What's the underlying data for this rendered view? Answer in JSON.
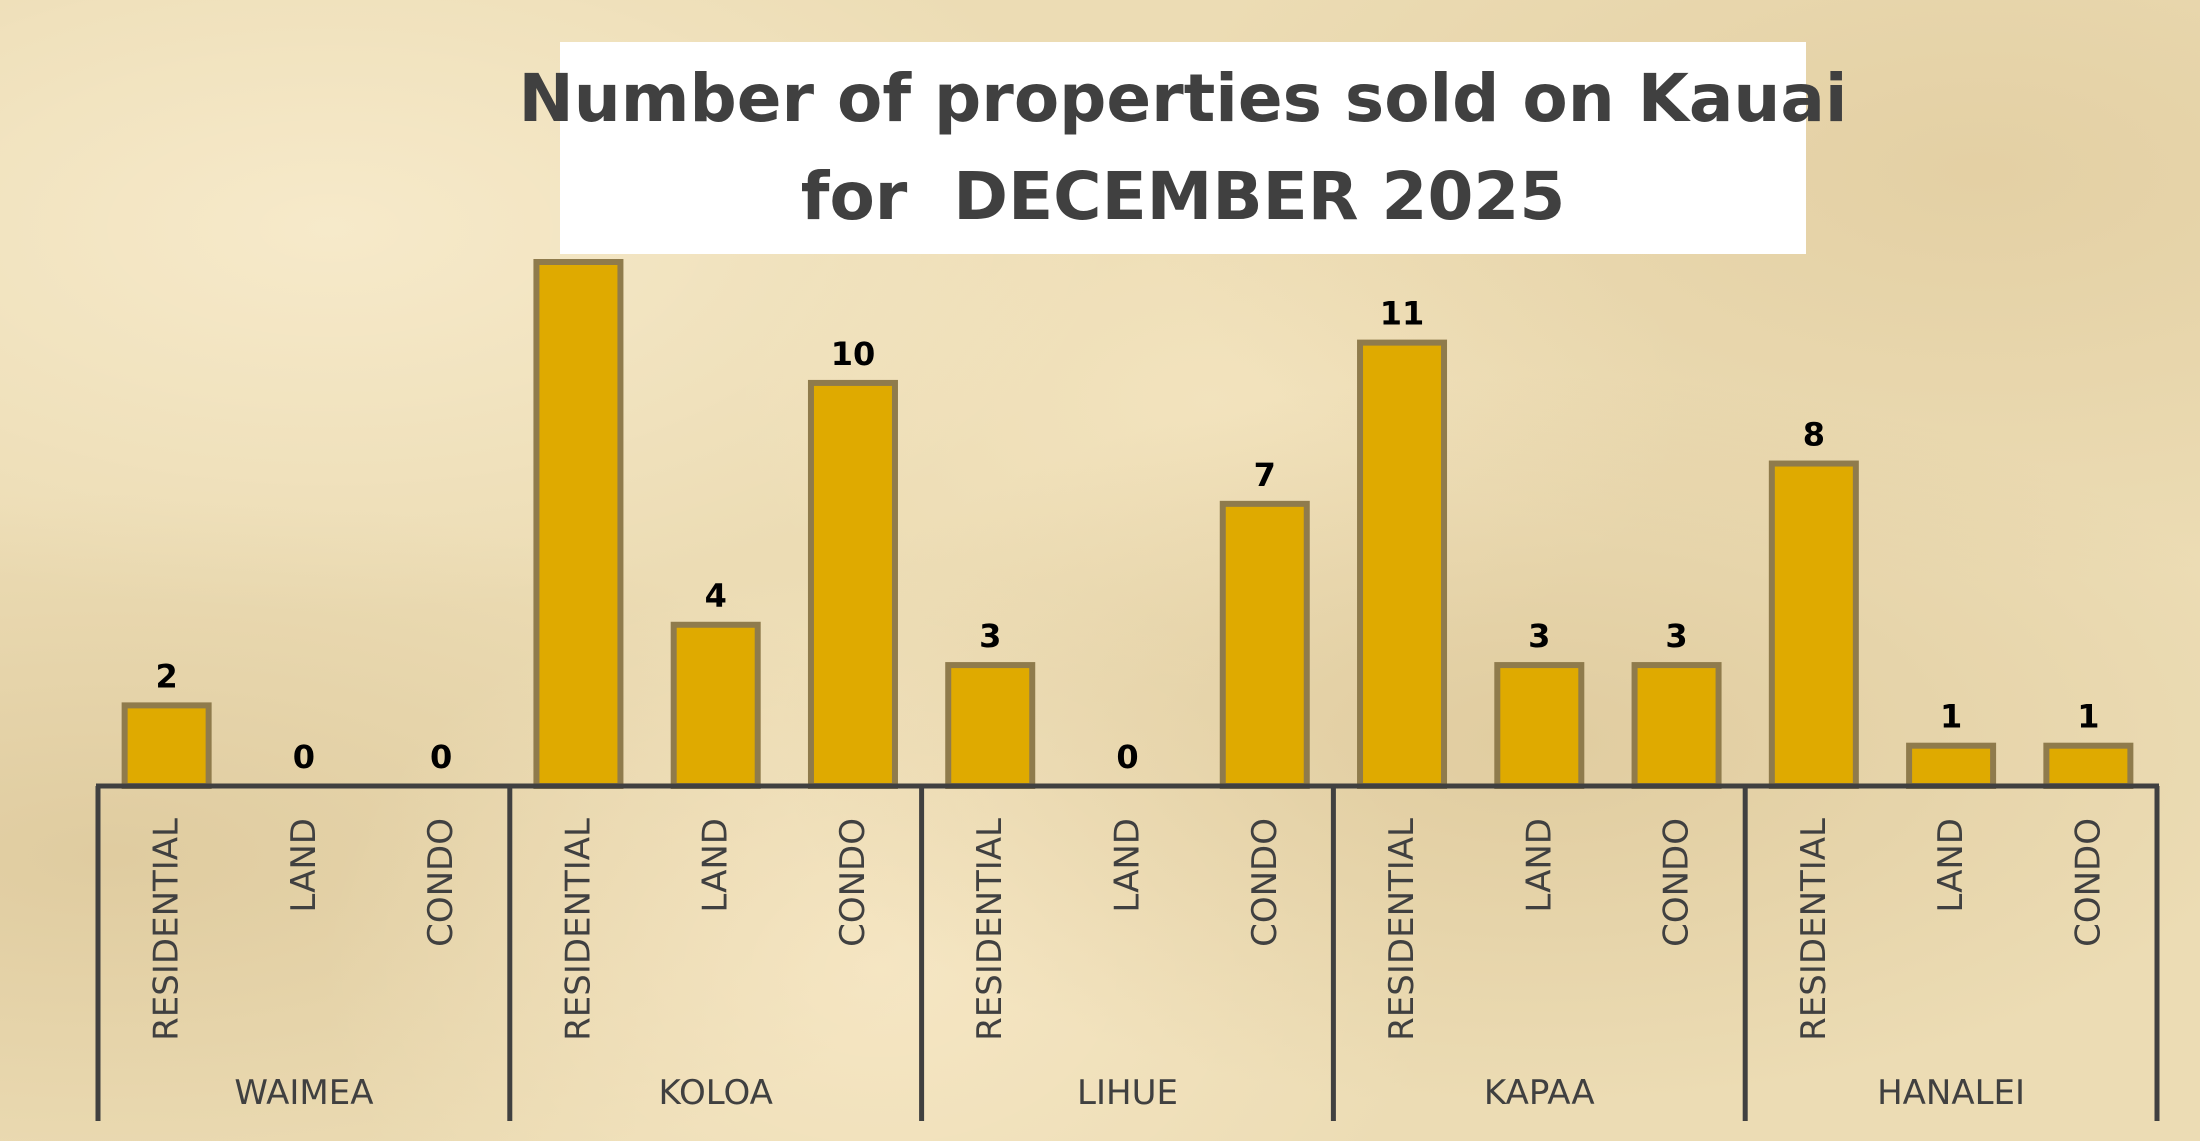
{
  "chart_data": {
    "type": "bar",
    "title_lines": [
      "Number of properties sold on Kauai",
      "for  DECEMBER 2025"
    ],
    "groups": [
      {
        "name": "WAIMEA",
        "categories": [
          "RESIDENTIAL",
          "LAND",
          "CONDO"
        ],
        "values": [
          2,
          0,
          0
        ],
        "labels": [
          "2",
          "0",
          "0"
        ]
      },
      {
        "name": "KOLOA",
        "categories": [
          "RESIDENTIAL",
          "LAND",
          "CONDO"
        ],
        "values": [
          13,
          4,
          10
        ],
        "labels": [
          "",
          "4",
          "10"
        ]
      },
      {
        "name": "LIHUE",
        "categories": [
          "RESIDENTIAL",
          "LAND",
          "CONDO"
        ],
        "values": [
          3,
          0,
          7
        ],
        "labels": [
          "3",
          "0",
          "7"
        ]
      },
      {
        "name": "KAPAA",
        "categories": [
          "RESIDENTIAL",
          "LAND",
          "CONDO"
        ],
        "values": [
          11,
          3,
          3
        ],
        "labels": [
          "11",
          "3",
          "3"
        ]
      },
      {
        "name": "HANALEI",
        "categories": [
          "RESIDENTIAL",
          "LAND",
          "CONDO"
        ],
        "values": [
          8,
          1,
          1
        ],
        "labels": [
          "8",
          "1",
          "1"
        ]
      }
    ],
    "ylim": [
      0,
      13
    ],
    "grid": false,
    "bar_color": "#dfaa00",
    "bar_edge_color": "#8f7b4c",
    "axis_color": "#404040",
    "label_color": "#000000",
    "tick_color": "#404040"
  }
}
